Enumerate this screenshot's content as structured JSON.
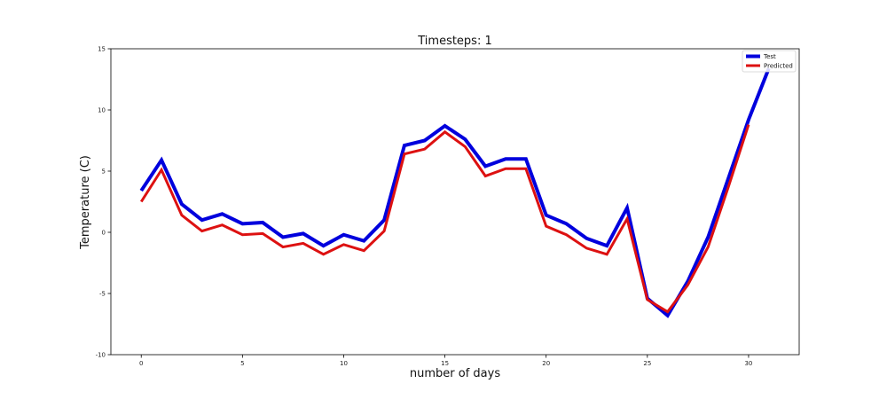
{
  "chart_data": {
    "type": "line",
    "title": "Timesteps: 1",
    "xlabel": "number of days",
    "ylabel": "Temperature (C)",
    "xlim": [
      -1.5,
      32.5
    ],
    "ylim": [
      -10,
      15
    ],
    "xticks": [
      0,
      5,
      10,
      15,
      20,
      25,
      30
    ],
    "yticks": [
      -10,
      -5,
      0,
      5,
      10,
      15
    ],
    "grid": false,
    "legend_position": "top-right",
    "series": [
      {
        "name": "Test",
        "color": "#0000dd",
        "x": [
          0,
          1,
          2,
          3,
          4,
          5,
          6,
          7,
          8,
          9,
          10,
          11,
          12,
          13,
          14,
          15,
          16,
          17,
          18,
          19,
          20,
          21,
          22,
          23,
          24,
          25,
          26,
          27,
          28,
          29,
          30,
          31
        ],
        "values": [
          3.4,
          5.9,
          2.3,
          1.0,
          1.5,
          0.7,
          0.8,
          -0.4,
          -0.1,
          -1.1,
          -0.2,
          -0.7,
          1.0,
          7.1,
          7.5,
          8.7,
          7.6,
          5.4,
          6.0,
          6.0,
          1.4,
          0.7,
          -0.5,
          -1.1,
          2.0,
          -5.4,
          -6.8,
          -4.0,
          -0.4,
          4.4,
          9.2,
          13.4
        ]
      },
      {
        "name": "Predicted",
        "color": "#dd1111",
        "x": [
          0,
          1,
          2,
          3,
          4,
          5,
          6,
          7,
          8,
          9,
          10,
          11,
          12,
          13,
          14,
          15,
          16,
          17,
          18,
          19,
          20,
          21,
          22,
          23,
          24,
          25,
          26,
          27,
          28,
          29,
          30
        ],
        "values": [
          2.5,
          5.1,
          1.4,
          0.1,
          0.6,
          -0.2,
          -0.1,
          -1.2,
          -0.9,
          -1.8,
          -1.0,
          -1.5,
          0.1,
          6.4,
          6.8,
          8.2,
          7.0,
          4.6,
          5.2,
          5.2,
          0.5,
          -0.2,
          -1.3,
          -1.8,
          1.1,
          -5.5,
          -6.5,
          -4.3,
          -1.2,
          3.7,
          8.8
        ]
      }
    ]
  }
}
